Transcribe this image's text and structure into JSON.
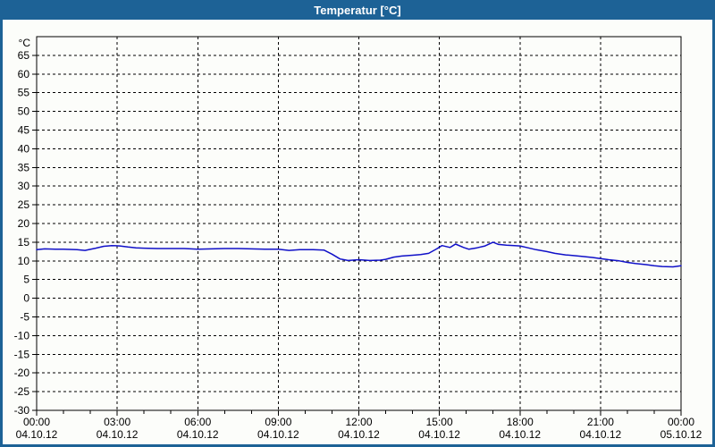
{
  "window": {
    "title": "Temperatur [°C]",
    "title_bar_color": "#1D6296",
    "border_color": "#1D6296",
    "body_color": "#FCFDFA"
  },
  "chart_data": {
    "type": "line",
    "title": "Temperatur [°C]",
    "y_unit_label": "°C",
    "xlabel": "",
    "ylabel": "Temperatur",
    "ylim": [
      -30,
      70
    ],
    "y_ticks": [
      65,
      60,
      55,
      50,
      45,
      40,
      35,
      30,
      25,
      20,
      15,
      10,
      5,
      0,
      -5,
      -10,
      -15,
      -20,
      -25,
      -30
    ],
    "x_hours_range": [
      0,
      24
    ],
    "x_major_ticks": [
      {
        "hour": 0,
        "time": "00:00",
        "date": "04.10.12"
      },
      {
        "hour": 3,
        "time": "03:00",
        "date": "04.10.12"
      },
      {
        "hour": 6,
        "time": "06:00",
        "date": "04.10.12"
      },
      {
        "hour": 9,
        "time": "09:00",
        "date": "04.10.12"
      },
      {
        "hour": 12,
        "time": "12:00",
        "date": "04.10.12"
      },
      {
        "hour": 15,
        "time": "15:00",
        "date": "04.10.12"
      },
      {
        "hour": 18,
        "time": "18:00",
        "date": "04.10.12"
      },
      {
        "hour": 21,
        "time": "21:00",
        "date": "04.10.12"
      },
      {
        "hour": 24,
        "time": "00:00",
        "date": "05.10.12"
      }
    ],
    "grid": "dashed",
    "legend": "none",
    "line_color": "#1010C8",
    "series": [
      {
        "name": "Temperatur",
        "points": [
          [
            0,
            13.0
          ],
          [
            0.3,
            13.2
          ],
          [
            0.7,
            13.1
          ],
          [
            1.0,
            13.1
          ],
          [
            1.5,
            13.0
          ],
          [
            1.8,
            12.8
          ],
          [
            2.2,
            13.4
          ],
          [
            2.5,
            13.9
          ],
          [
            2.8,
            14.1
          ],
          [
            3.1,
            14.0
          ],
          [
            3.4,
            13.7
          ],
          [
            3.7,
            13.5
          ],
          [
            4.0,
            13.4
          ],
          [
            4.5,
            13.3
          ],
          [
            5.0,
            13.3
          ],
          [
            5.5,
            13.3
          ],
          [
            6.0,
            13.1
          ],
          [
            6.5,
            13.2
          ],
          [
            7.0,
            13.3
          ],
          [
            7.5,
            13.3
          ],
          [
            8.0,
            13.2
          ],
          [
            8.5,
            13.1
          ],
          [
            9.0,
            13.1
          ],
          [
            9.4,
            12.8
          ],
          [
            9.8,
            13.0
          ],
          [
            10.3,
            13.0
          ],
          [
            10.7,
            12.9
          ],
          [
            11.0,
            11.8
          ],
          [
            11.3,
            10.5
          ],
          [
            11.6,
            10.1
          ],
          [
            12.0,
            10.3
          ],
          [
            12.4,
            10.1
          ],
          [
            12.8,
            10.2
          ],
          [
            13.0,
            10.4
          ],
          [
            13.3,
            11.0
          ],
          [
            13.6,
            11.3
          ],
          [
            14.0,
            11.5
          ],
          [
            14.3,
            11.7
          ],
          [
            14.6,
            12.0
          ],
          [
            14.9,
            13.2
          ],
          [
            15.1,
            14.1
          ],
          [
            15.4,
            13.6
          ],
          [
            15.6,
            14.5
          ],
          [
            15.9,
            13.6
          ],
          [
            16.1,
            13.1
          ],
          [
            16.4,
            13.5
          ],
          [
            16.7,
            14.0
          ],
          [
            17.0,
            15.0
          ],
          [
            17.2,
            14.4
          ],
          [
            17.5,
            14.2
          ],
          [
            17.8,
            14.1
          ],
          [
            18.0,
            14.0
          ],
          [
            18.3,
            13.5
          ],
          [
            18.6,
            13.0
          ],
          [
            19.0,
            12.5
          ],
          [
            19.3,
            12.0
          ],
          [
            19.7,
            11.6
          ],
          [
            20.0,
            11.4
          ],
          [
            20.3,
            11.2
          ],
          [
            20.7,
            10.9
          ],
          [
            21.0,
            10.6
          ],
          [
            21.3,
            10.3
          ],
          [
            21.7,
            10.0
          ],
          [
            22.0,
            9.6
          ],
          [
            22.3,
            9.3
          ],
          [
            22.7,
            9.0
          ],
          [
            23.0,
            8.7
          ],
          [
            23.3,
            8.5
          ],
          [
            23.7,
            8.4
          ],
          [
            24.0,
            8.7
          ]
        ]
      }
    ]
  }
}
